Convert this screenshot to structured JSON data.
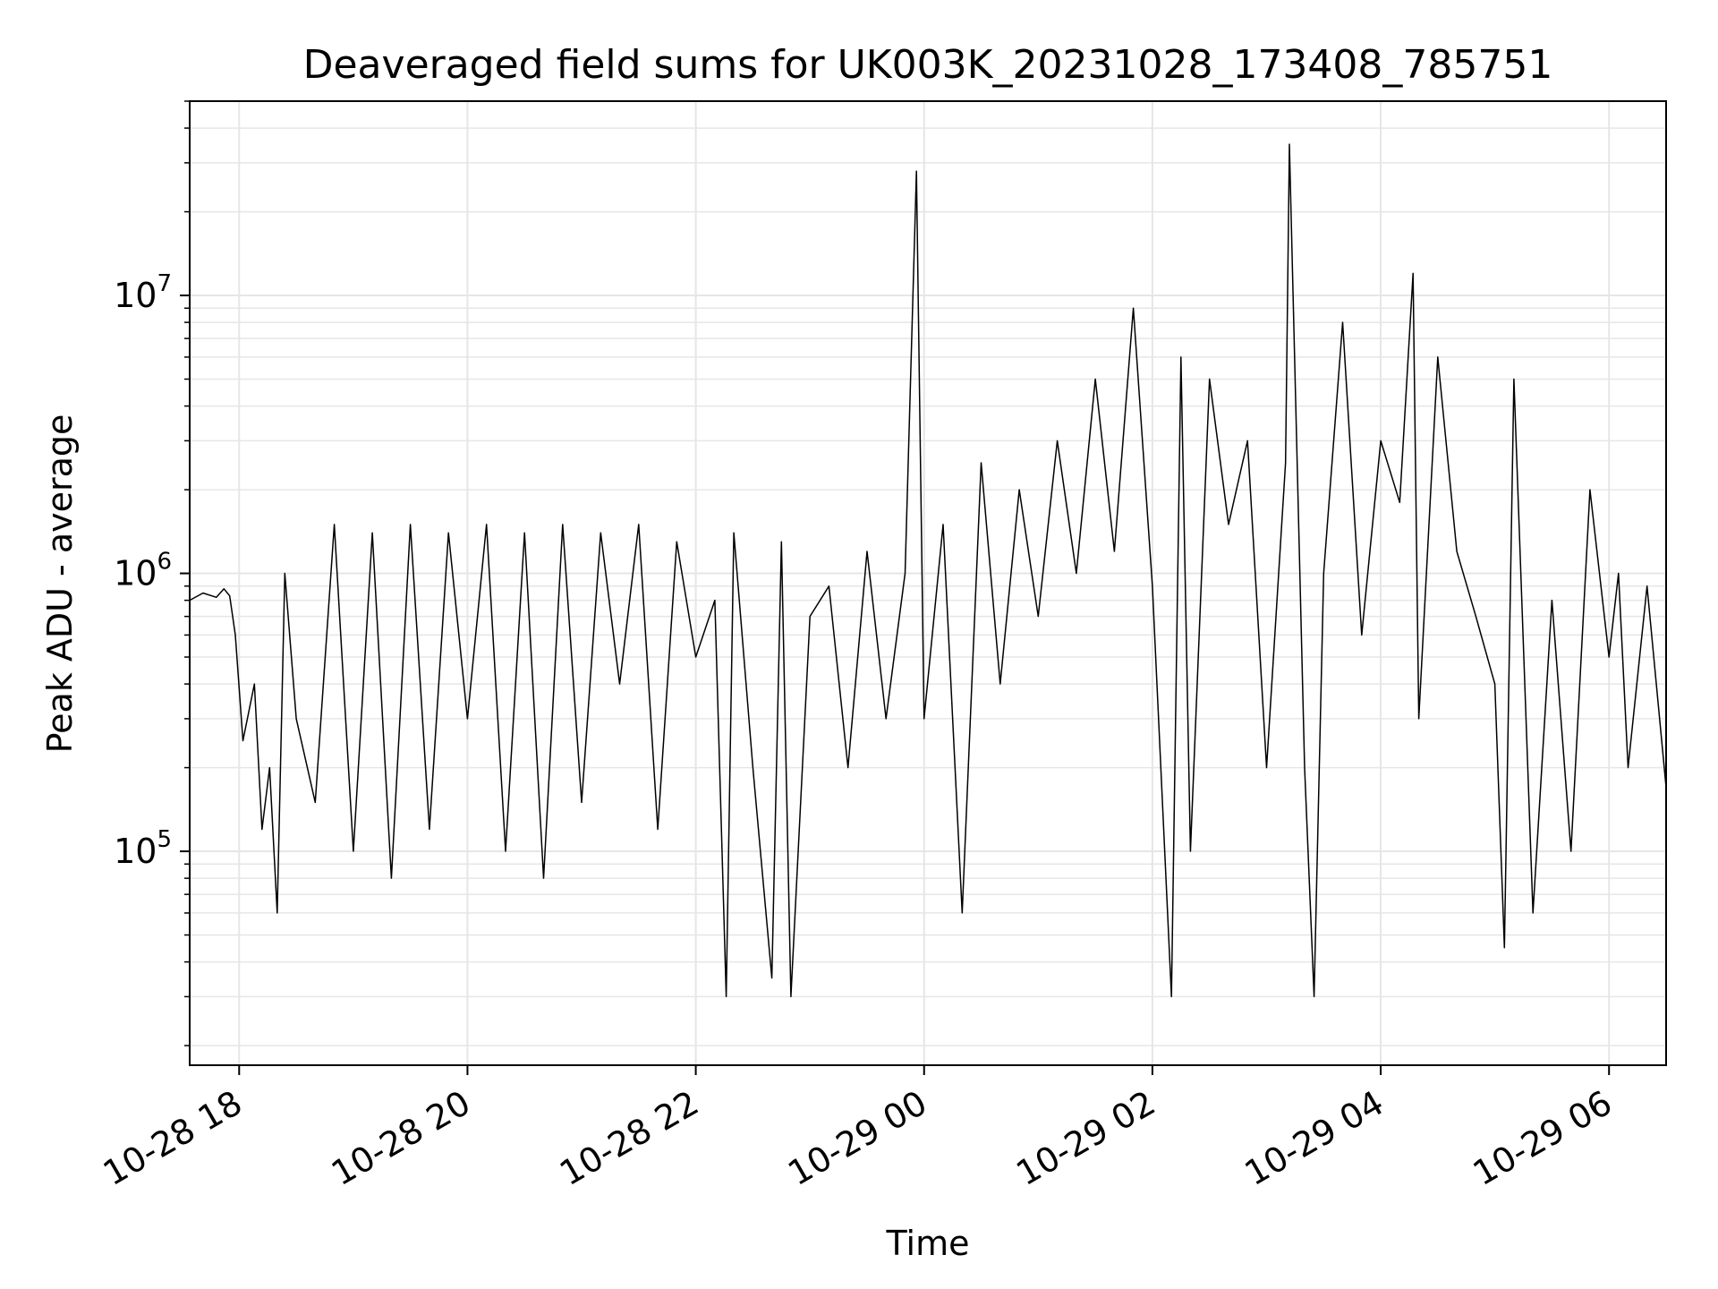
{
  "chart_data": {
    "type": "line",
    "title": "Deaveraged field sums for UK003K_20231028_173408_785751",
    "xlabel": "Time",
    "ylabel": "Peak ADU - average",
    "y_scale": "log",
    "ylim": [
      17000,
      50000000
    ],
    "xlim": [
      "2023-10-28 17:34",
      "2023-10-29 06:30"
    ],
    "grid": true,
    "line_color": "#000000",
    "grid_color": "#e6e6e6",
    "y_ticks": [
      {
        "value": 100000,
        "base": "10",
        "exp": "5"
      },
      {
        "value": 1000000,
        "base": "10",
        "exp": "6"
      },
      {
        "value": 10000000,
        "base": "10",
        "exp": "7"
      }
    ],
    "x_ticks": [
      {
        "value": "2023-10-28 18:00",
        "label": "10-28 18"
      },
      {
        "value": "2023-10-28 20:00",
        "label": "10-28 20"
      },
      {
        "value": "2023-10-28 22:00",
        "label": "10-28 22"
      },
      {
        "value": "2023-10-29 00:00",
        "label": "10-29 00"
      },
      {
        "value": "2023-10-29 02:00",
        "label": "10-29 02"
      },
      {
        "value": "2023-10-29 04:00",
        "label": "10-29 04"
      },
      {
        "value": "2023-10-29 06:00",
        "label": "10-29 06"
      }
    ],
    "series": [
      {
        "x": [
          "2023-10-28 17:34",
          "2023-10-28 17:41",
          "2023-10-28 17:48",
          "2023-10-28 17:52",
          "2023-10-28 17:55",
          "2023-10-28 17:58",
          "2023-10-28 18:02",
          "2023-10-28 18:08",
          "2023-10-28 18:12",
          "2023-10-28 18:16",
          "2023-10-28 18:20",
          "2023-10-28 18:24",
          "2023-10-28 18:30",
          "2023-10-28 18:40",
          "2023-10-28 18:50",
          "2023-10-28 19:00",
          "2023-10-28 19:10",
          "2023-10-28 19:20",
          "2023-10-28 19:30",
          "2023-10-28 19:40",
          "2023-10-28 19:50",
          "2023-10-28 20:00",
          "2023-10-28 20:10",
          "2023-10-28 20:20",
          "2023-10-28 20:30",
          "2023-10-28 20:40",
          "2023-10-28 20:50",
          "2023-10-28 21:00",
          "2023-10-28 21:10",
          "2023-10-28 21:20",
          "2023-10-28 21:30",
          "2023-10-28 21:40",
          "2023-10-28 21:50",
          "2023-10-28 22:00",
          "2023-10-28 22:10",
          "2023-10-28 22:16",
          "2023-10-28 22:20",
          "2023-10-28 22:30",
          "2023-10-28 22:40",
          "2023-10-28 22:45",
          "2023-10-28 22:50",
          "2023-10-28 23:00",
          "2023-10-28 23:10",
          "2023-10-28 23:20",
          "2023-10-28 23:30",
          "2023-10-28 23:40",
          "2023-10-28 23:50",
          "2023-10-28 23:56",
          "2023-10-29 00:00",
          "2023-10-29 00:10",
          "2023-10-29 00:20",
          "2023-10-29 00:30",
          "2023-10-29 00:40",
          "2023-10-29 00:50",
          "2023-10-29 01:00",
          "2023-10-29 01:10",
          "2023-10-29 01:20",
          "2023-10-29 01:30",
          "2023-10-29 01:40",
          "2023-10-29 01:50",
          "2023-10-29 02:00",
          "2023-10-29 02:10",
          "2023-10-29 02:15",
          "2023-10-29 02:20",
          "2023-10-29 02:30",
          "2023-10-29 02:40",
          "2023-10-29 02:50",
          "2023-10-29 03:00",
          "2023-10-29 03:10",
          "2023-10-29 03:12",
          "2023-10-29 03:20",
          "2023-10-29 03:25",
          "2023-10-29 03:30",
          "2023-10-29 03:40",
          "2023-10-29 03:50",
          "2023-10-29 04:00",
          "2023-10-29 04:10",
          "2023-10-29 04:17",
          "2023-10-29 04:20",
          "2023-10-29 04:30",
          "2023-10-29 04:40",
          "2023-10-29 04:50",
          "2023-10-29 05:00",
          "2023-10-29 05:05",
          "2023-10-29 05:10",
          "2023-10-29 05:20",
          "2023-10-29 05:30",
          "2023-10-29 05:40",
          "2023-10-29 05:50",
          "2023-10-29 06:00",
          "2023-10-29 06:05",
          "2023-10-29 06:10",
          "2023-10-29 06:20",
          "2023-10-29 06:30"
        ],
        "y": [
          800000,
          850000,
          820000,
          880000,
          830000,
          600000,
          250000,
          400000,
          120000,
          200000,
          60000,
          1000000,
          300000,
          150000,
          1500000,
          100000,
          1400000,
          80000,
          1500000,
          120000,
          1400000,
          300000,
          1500000,
          100000,
          1400000,
          80000,
          1500000,
          150000,
          1400000,
          400000,
          1500000,
          120000,
          1300000,
          500000,
          800000,
          30000,
          1400000,
          200000,
          35000,
          1300000,
          30000,
          700000,
          900000,
          200000,
          1200000,
          300000,
          1000000,
          28000000,
          300000,
          1500000,
          60000,
          2500000,
          400000,
          2000000,
          700000,
          3000000,
          1000000,
          5000000,
          1200000,
          9000000,
          900000,
          30000,
          6000000,
          100000,
          5000000,
          1500000,
          3000000,
          200000,
          2500000,
          35000000,
          200000,
          30000,
          1000000,
          8000000,
          600000,
          3000000,
          1800000,
          12000000,
          300000,
          6000000,
          1200000,
          700000,
          400000,
          45000,
          5000000,
          60000,
          800000,
          100000,
          2000000,
          500000,
          1000000,
          200000,
          900000,
          170000
        ],
        "color": "#000000"
      }
    ]
  }
}
